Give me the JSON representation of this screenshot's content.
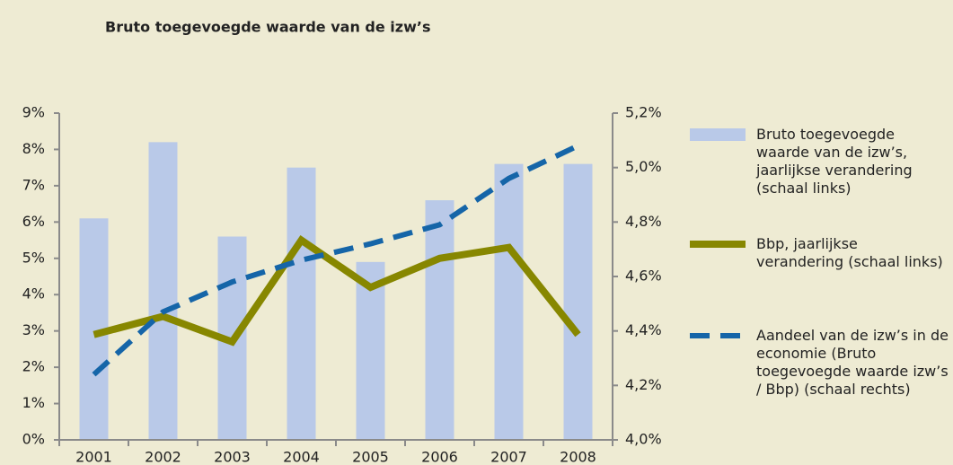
{
  "chart_data": {
    "type": "bar-line",
    "title": "Bruto toegevoegde waarde van de izw’s",
    "categories": [
      "2001",
      "2002",
      "2003",
      "2004",
      "2005",
      "2006",
      "2007",
      "2008"
    ],
    "series": [
      {
        "name": "Bruto toegevoegde waarde van de izw’s, jaarlijkse verandering (schaal links)",
        "type": "bar",
        "color": "#b9c9e8",
        "axis": "y",
        "values": [
          6.1,
          8.2,
          5.6,
          7.5,
          4.9,
          6.6,
          7.6,
          7.6
        ]
      },
      {
        "name": "Bbp, jaarlijkse verandering (schaal links)",
        "type": "line",
        "color": "#878700",
        "axis": "y",
        "values": [
          2.9,
          3.4,
          2.7,
          5.5,
          4.2,
          5.0,
          5.3,
          2.9
        ]
      },
      {
        "name": "Aandeel van de izw’s in de economie (Bruto toegevoegde waarde izw’s / Bbp) (schaal rechts)",
        "type": "dashed-line",
        "color": "#1565a8",
        "axis": "y2",
        "values": [
          4.24,
          4.47,
          4.58,
          4.66,
          4.72,
          4.79,
          4.96,
          5.08
        ]
      }
    ],
    "ylim": [
      0,
      9
    ],
    "yticks": [
      {
        "value": 0,
        "label": "0%"
      },
      {
        "value": 1,
        "label": "1%"
      },
      {
        "value": 2,
        "label": "2%"
      },
      {
        "value": 3,
        "label": "3%"
      },
      {
        "value": 4,
        "label": "4%"
      },
      {
        "value": 5,
        "label": "5%"
      },
      {
        "value": 6,
        "label": "6%"
      },
      {
        "value": 7,
        "label": "7%"
      },
      {
        "value": 8,
        "label": "8%"
      },
      {
        "value": 9,
        "label": "9%"
      }
    ],
    "y2lim": [
      4.0,
      5.2
    ],
    "y2ticks": [
      {
        "value": 4.0,
        "label": "4,0%"
      },
      {
        "value": 4.2,
        "label": "4,2%"
      },
      {
        "value": 4.4,
        "label": "4,4%"
      },
      {
        "value": 4.6,
        "label": "4,6%"
      },
      {
        "value": 4.8,
        "label": "4,8%"
      },
      {
        "value": 5.0,
        "label": "5,0%"
      },
      {
        "value": 5.2,
        "label": "5,2%"
      }
    ],
    "grid": false,
    "legend": "right"
  }
}
